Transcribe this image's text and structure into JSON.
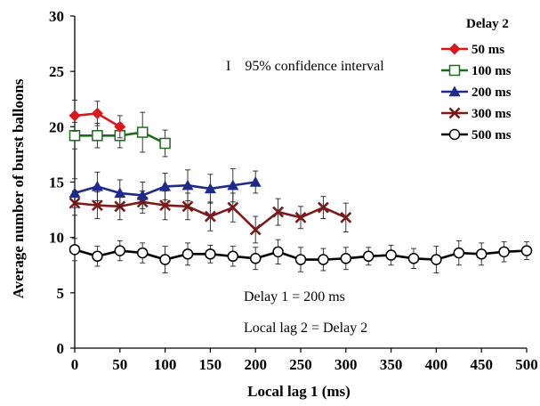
{
  "chart_data": {
    "type": "line",
    "xlabel": "Local lag 1 (ms)",
    "ylabel": "Average number of burst balloons",
    "xlim": [
      0,
      500
    ],
    "ylim": [
      0,
      30
    ],
    "xticks": [
      0,
      50,
      100,
      150,
      200,
      250,
      300,
      350,
      400,
      450,
      500
    ],
    "yticks": [
      0,
      5,
      10,
      15,
      20,
      25,
      30
    ],
    "legend_title": "Delay 2",
    "legend_position": "top-right",
    "grid": false,
    "annotations": {
      "ci_note": "I    95% confidence interval",
      "delay1": "Delay 1 = 200 ms",
      "local_lag2": "Local lag 2 = Delay 2"
    },
    "series": [
      {
        "name": "50 ms",
        "color": "#d7191c",
        "marker": "diamond",
        "x": [
          0,
          25,
          50
        ],
        "y": [
          21.0,
          21.2,
          20.0
        ],
        "err": [
          1.4,
          1.1,
          1.0
        ]
      },
      {
        "name": "100 ms",
        "color": "#1e6b1e",
        "marker": "square-open",
        "x": [
          0,
          25,
          50,
          75,
          100
        ],
        "y": [
          19.2,
          19.2,
          19.2,
          19.5,
          18.5
        ],
        "err": [
          1.2,
          1.1,
          1.1,
          1.8,
          1.2
        ]
      },
      {
        "name": "200 ms",
        "color": "#1f2b8a",
        "marker": "triangle",
        "x": [
          0,
          25,
          50,
          75,
          100,
          125,
          150,
          175,
          200
        ],
        "y": [
          14.0,
          14.6,
          14.0,
          13.8,
          14.6,
          14.7,
          14.4,
          14.7,
          15.0
        ],
        "err": [
          1.3,
          1.3,
          1.2,
          1.2,
          1.2,
          1.4,
          1.3,
          1.5,
          1.0
        ]
      },
      {
        "name": "300 ms",
        "color": "#7a1a1a",
        "marker": "x",
        "x": [
          0,
          25,
          50,
          75,
          100,
          125,
          150,
          175,
          200,
          225,
          250,
          275,
          300
        ],
        "y": [
          13.1,
          12.9,
          12.8,
          13.2,
          12.9,
          12.8,
          11.9,
          12.7,
          10.7,
          12.3,
          11.8,
          12.7,
          11.8
        ],
        "err": [
          1.1,
          1.2,
          1.2,
          1.0,
          1.3,
          1.2,
          1.3,
          1.3,
          1.2,
          1.2,
          1.0,
          1.0,
          1.3
        ]
      },
      {
        "name": "500 ms",
        "color": "#000000",
        "marker": "circle-open",
        "x": [
          0,
          25,
          50,
          75,
          100,
          125,
          150,
          175,
          200,
          225,
          250,
          275,
          300,
          325,
          350,
          375,
          400,
          425,
          450,
          475,
          500
        ],
        "y": [
          8.9,
          8.3,
          8.8,
          8.6,
          8.0,
          8.5,
          8.5,
          8.3,
          8.1,
          8.7,
          8.0,
          8.0,
          8.1,
          8.3,
          8.4,
          8.1,
          8.0,
          8.6,
          8.5,
          8.7,
          8.8
        ],
        "err": [
          1.0,
          0.9,
          0.9,
          0.9,
          1.2,
          1.0,
          0.8,
          0.9,
          1.0,
          1.1,
          1.1,
          1.0,
          1.0,
          0.8,
          0.9,
          0.9,
          1.2,
          1.1,
          1.0,
          0.9,
          0.8
        ]
      }
    ]
  }
}
